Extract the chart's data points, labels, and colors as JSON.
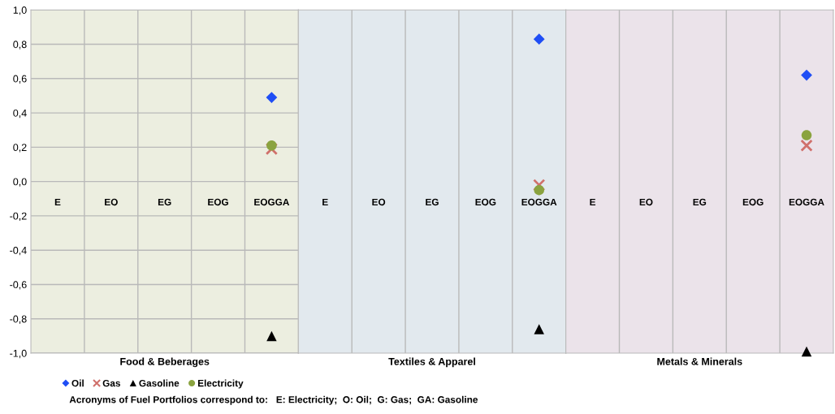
{
  "chart_data": [
    {
      "type": "scatter",
      "xlabel": "Food & Beberages",
      "categories": [
        "E",
        "EO",
        "EG",
        "EOG",
        "EOGGA"
      ],
      "series": [
        {
          "name": "Oil",
          "color": "#1f4ef5",
          "marker": "diamond",
          "values": [
            null,
            null,
            null,
            null,
            0.49
          ]
        },
        {
          "name": "Gas",
          "color": "#d0706b",
          "marker": "cross",
          "values": [
            null,
            null,
            null,
            null,
            0.19
          ]
        },
        {
          "name": "Gasoline",
          "color": "#000000",
          "marker": "triangle",
          "values": [
            null,
            null,
            null,
            null,
            -0.9
          ]
        },
        {
          "name": "Electricity",
          "color": "#8aa33f",
          "marker": "circle",
          "values": [
            null,
            null,
            null,
            null,
            0.21
          ]
        }
      ],
      "ylim": [
        -1,
        1
      ],
      "yticks": [
        {
          "value": -1,
          "label": "-1,0"
        },
        {
          "value": -0.8,
          "label": "-0,8"
        },
        {
          "value": -0.6,
          "label": "-0,6"
        },
        {
          "value": -0.4,
          "label": "-0,4"
        },
        {
          "value": -0.2,
          "label": "-0,2"
        },
        {
          "value": 0,
          "label": "0,0"
        },
        {
          "value": 0.2,
          "label": "0,2"
        },
        {
          "value": 0.4,
          "label": "0,4"
        },
        {
          "value": 0.6,
          "label": "0,6"
        },
        {
          "value": 0.8,
          "label": "0,8"
        },
        {
          "value": 1,
          "label": "1,0"
        }
      ],
      "bands": [
        {
          "axis": "y",
          "from": -1,
          "to": 1,
          "color": "#eceee0"
        }
      ],
      "grid": true,
      "legend": "bottom left",
      "annotations": [
        "Acronyms of Fuel Portfolios correspond to:   E: Electricity;  O: Oil;  G: Gas;  GA: Gasoline"
      ]
    },
    {
      "type": "scatter",
      "xlabel": "Textiles & Apparel",
      "categories": [
        "E",
        "EO",
        "EG",
        "EOG",
        "EOGGA"
      ],
      "series": [
        {
          "color": "#1f4ef5",
          "marker": "diamond",
          "values": [
            null,
            null,
            null,
            null,
            0.83
          ]
        },
        {
          "color": "#d0706b",
          "marker": "cross",
          "values": [
            null,
            null,
            null,
            null,
            -0.02
          ]
        },
        {
          "color": "#000000",
          "marker": "triangle",
          "values": [
            null,
            null,
            null,
            null,
            -0.86
          ]
        },
        {
          "color": "#8aa33f",
          "marker": "circle",
          "values": [
            null,
            null,
            null,
            null,
            -0.05
          ]
        }
      ],
      "ylim": [
        -1,
        1
      ],
      "tick_labels": "x",
      "bands": [
        {
          "axis": "y",
          "from": -1,
          "to": 1,
          "color": "#e2e9ee"
        }
      ],
      "grid": true
    },
    {
      "type": "scatter",
      "xlabel": "Metals & Minerals",
      "categories": [
        "E",
        "EO",
        "EG",
        "EOG",
        "EOGGA"
      ],
      "series": [
        {
          "color": "#1f4ef5",
          "marker": "diamond",
          "values": [
            null,
            null,
            null,
            null,
            0.62
          ]
        },
        {
          "color": "#d0706b",
          "marker": "cross",
          "values": [
            null,
            null,
            null,
            null,
            0.21
          ]
        },
        {
          "color": "#000000",
          "marker": "triangle",
          "values": [
            null,
            null,
            null,
            null,
            -0.99
          ]
        },
        {
          "color": "#8aa33f",
          "marker": "circle",
          "values": [
            null,
            null,
            null,
            null,
            0.27
          ]
        }
      ],
      "ylim": [
        -1,
        1
      ],
      "tick_labels": "x",
      "bands": [
        {
          "axis": "y",
          "from": -1,
          "to": 1,
          "color": "#ebe3ea"
        }
      ],
      "grid": true
    }
  ]
}
